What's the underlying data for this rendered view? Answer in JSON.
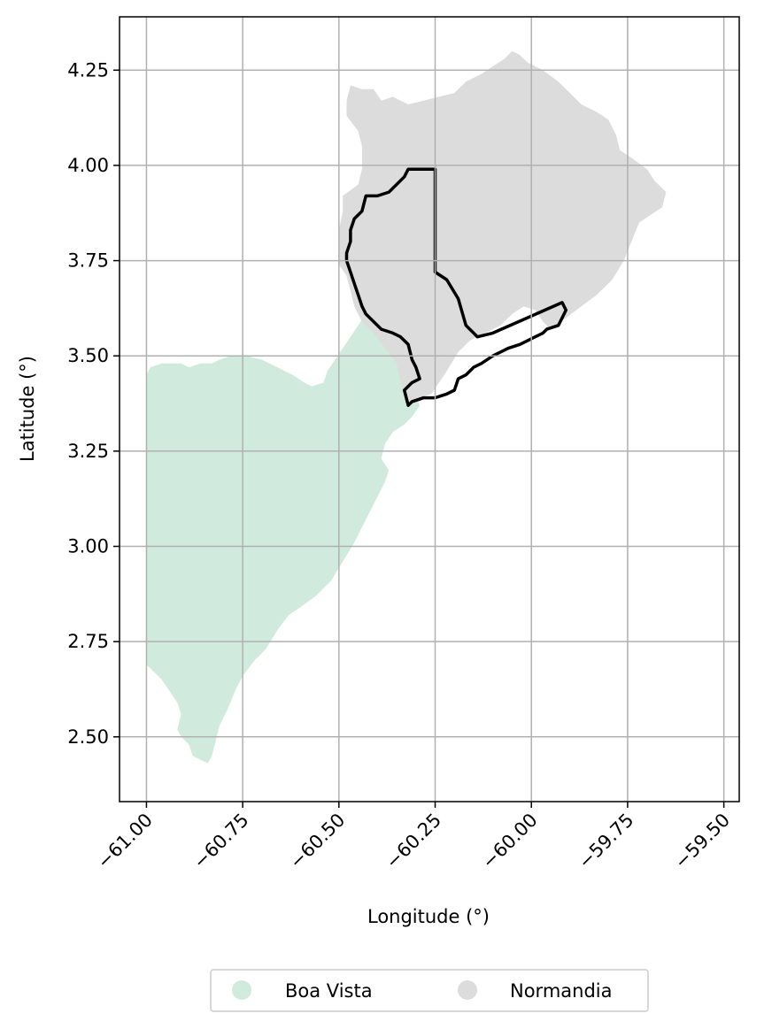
{
  "axes": {
    "xlabel": "Longitude (°)",
    "ylabel": "Latitude (°)",
    "xlim": [
      -61.07,
      -59.46
    ],
    "ylim": [
      2.33,
      4.39
    ],
    "x_ticks": [
      -61.0,
      -60.75,
      -60.5,
      -60.25,
      -60.0,
      -59.75,
      -59.5
    ],
    "x_tick_labels": [
      "−61.00",
      "−60.75",
      "−60.50",
      "−60.25",
      "−60.00",
      "−59.75",
      "−59.50"
    ],
    "y_ticks": [
      2.5,
      2.75,
      3.0,
      3.25,
      3.5,
      3.75,
      4.0,
      4.25
    ],
    "y_tick_labels": [
      "2.50",
      "2.75",
      "3.00",
      "3.25",
      "3.50",
      "3.75",
      "4.00",
      "4.25"
    ],
    "grid": true
  },
  "legend": {
    "placement": "bottom-center",
    "items": [
      {
        "label": "Boa Vista",
        "color": "#d0ebdd"
      },
      {
        "label": "Normandia",
        "color": "#dcdcdc"
      }
    ]
  },
  "colors": {
    "boa_vista": "#d0ebdd",
    "normandia": "#dcdcdc",
    "outline": "#000000",
    "grid": "#b0b0b0"
  },
  "regions": [
    {
      "name": "Boa Vista",
      "color": "#d0ebdd",
      "coords": [
        [
          -61.0,
          3.45
        ],
        [
          -60.99,
          3.47
        ],
        [
          -60.96,
          3.48
        ],
        [
          -60.94,
          3.48
        ],
        [
          -60.91,
          3.48
        ],
        [
          -60.89,
          3.47
        ],
        [
          -60.86,
          3.48
        ],
        [
          -60.83,
          3.48
        ],
        [
          -60.81,
          3.49
        ],
        [
          -60.78,
          3.5
        ],
        [
          -60.74,
          3.5
        ],
        [
          -60.7,
          3.49
        ],
        [
          -60.66,
          3.47
        ],
        [
          -60.62,
          3.45
        ],
        [
          -60.59,
          3.43
        ],
        [
          -60.57,
          3.42
        ],
        [
          -60.54,
          3.43
        ],
        [
          -60.53,
          3.46
        ],
        [
          -60.51,
          3.49
        ],
        [
          -60.49,
          3.52
        ],
        [
          -60.47,
          3.55
        ],
        [
          -60.45,
          3.58
        ],
        [
          -60.43,
          3.61
        ],
        [
          -60.41,
          3.59
        ],
        [
          -60.39,
          3.56
        ],
        [
          -60.37,
          3.53
        ],
        [
          -60.35,
          3.5
        ],
        [
          -60.33,
          3.46
        ],
        [
          -60.31,
          3.42
        ],
        [
          -60.29,
          3.37
        ],
        [
          -60.31,
          3.34
        ],
        [
          -60.33,
          3.32
        ],
        [
          -60.36,
          3.3
        ],
        [
          -60.38,
          3.27
        ],
        [
          -60.39,
          3.23
        ],
        [
          -60.37,
          3.2
        ],
        [
          -60.38,
          3.17
        ],
        [
          -60.4,
          3.13
        ],
        [
          -60.42,
          3.09
        ],
        [
          -60.44,
          3.05
        ],
        [
          -60.46,
          3.01
        ],
        [
          -60.49,
          2.96
        ],
        [
          -60.52,
          2.91
        ],
        [
          -60.56,
          2.87
        ],
        [
          -60.6,
          2.84
        ],
        [
          -60.63,
          2.82
        ],
        [
          -60.66,
          2.78
        ],
        [
          -60.69,
          2.73
        ],
        [
          -60.72,
          2.7
        ],
        [
          -60.75,
          2.66
        ],
        [
          -60.77,
          2.62
        ],
        [
          -60.79,
          2.57
        ],
        [
          -60.81,
          2.53
        ],
        [
          -60.82,
          2.49
        ],
        [
          -60.83,
          2.45
        ],
        [
          -60.84,
          2.43
        ],
        [
          -60.86,
          2.44
        ],
        [
          -60.88,
          2.45
        ],
        [
          -60.89,
          2.48
        ],
        [
          -60.91,
          2.5
        ],
        [
          -60.92,
          2.52
        ],
        [
          -60.91,
          2.56
        ],
        [
          -60.92,
          2.59
        ],
        [
          -60.94,
          2.62
        ],
        [
          -60.96,
          2.65
        ],
        [
          -60.98,
          2.67
        ],
        [
          -61.0,
          2.69
        ],
        [
          -61.0,
          2.8
        ],
        [
          -61.0,
          2.95
        ],
        [
          -61.0,
          3.1
        ],
        [
          -61.0,
          3.25
        ],
        [
          -61.0,
          3.45
        ]
      ]
    },
    {
      "name": "Normandia",
      "color": "#dcdcdc",
      "coords": [
        [
          -60.47,
          4.21
        ],
        [
          -60.44,
          4.2
        ],
        [
          -60.41,
          4.2
        ],
        [
          -60.39,
          4.17
        ],
        [
          -60.36,
          4.18
        ],
        [
          -60.32,
          4.16
        ],
        [
          -60.28,
          4.17
        ],
        [
          -60.24,
          4.18
        ],
        [
          -60.2,
          4.19
        ],
        [
          -60.17,
          4.22
        ],
        [
          -60.13,
          4.24
        ],
        [
          -60.1,
          4.26
        ],
        [
          -60.07,
          4.28
        ],
        [
          -60.05,
          4.3
        ],
        [
          -60.03,
          4.29
        ],
        [
          -60.01,
          4.27
        ],
        [
          -59.97,
          4.25
        ],
        [
          -59.93,
          4.22
        ],
        [
          -59.9,
          4.19
        ],
        [
          -59.87,
          4.16
        ],
        [
          -59.83,
          4.14
        ],
        [
          -59.8,
          4.12
        ],
        [
          -59.78,
          4.08
        ],
        [
          -59.77,
          4.04
        ],
        [
          -59.74,
          4.02
        ],
        [
          -59.7,
          3.99
        ],
        [
          -59.68,
          3.96
        ],
        [
          -59.65,
          3.93
        ],
        [
          -59.66,
          3.89
        ],
        [
          -59.69,
          3.87
        ],
        [
          -59.72,
          3.85
        ],
        [
          -59.74,
          3.8
        ],
        [
          -59.76,
          3.75
        ],
        [
          -59.79,
          3.7
        ],
        [
          -59.83,
          3.66
        ],
        [
          -59.87,
          3.63
        ],
        [
          -59.91,
          3.6
        ],
        [
          -59.95,
          3.57
        ],
        [
          -59.97,
          3.59
        ],
        [
          -59.99,
          3.62
        ],
        [
          -60.02,
          3.63
        ],
        [
          -60.05,
          3.61
        ],
        [
          -60.08,
          3.58
        ],
        [
          -60.12,
          3.56
        ],
        [
          -60.16,
          3.54
        ],
        [
          -60.19,
          3.51
        ],
        [
          -60.22,
          3.46
        ],
        [
          -60.24,
          3.43
        ],
        [
          -60.26,
          3.4
        ],
        [
          -60.29,
          3.39
        ],
        [
          -60.32,
          3.38
        ],
        [
          -60.34,
          3.43
        ],
        [
          -60.35,
          3.48
        ],
        [
          -60.38,
          3.52
        ],
        [
          -60.41,
          3.56
        ],
        [
          -60.44,
          3.59
        ],
        [
          -60.46,
          3.63
        ],
        [
          -60.47,
          3.67
        ],
        [
          -60.48,
          3.71
        ],
        [
          -60.5,
          3.74
        ],
        [
          -60.5,
          3.78
        ],
        [
          -60.5,
          3.83
        ],
        [
          -60.49,
          3.88
        ],
        [
          -60.49,
          3.92
        ],
        [
          -60.45,
          3.95
        ],
        [
          -60.44,
          3.99
        ],
        [
          -60.44,
          4.05
        ],
        [
          -60.45,
          4.09
        ],
        [
          -60.48,
          4.13
        ],
        [
          -60.48,
          4.17
        ],
        [
          -60.47,
          4.21
        ]
      ]
    }
  ],
  "outline": {
    "color": "#000000",
    "coords": [
      [
        -60.3,
        3.99
      ],
      [
        -60.25,
        3.99
      ],
      [
        -60.25,
        3.72
      ],
      [
        -60.22,
        3.7
      ],
      [
        -60.19,
        3.65
      ],
      [
        -60.17,
        3.58
      ],
      [
        -60.14,
        3.55
      ],
      [
        -60.1,
        3.56
      ],
      [
        -59.92,
        3.64
      ],
      [
        -59.91,
        3.62
      ],
      [
        -59.92,
        3.6
      ],
      [
        -59.93,
        3.58
      ],
      [
        -59.96,
        3.57
      ],
      [
        -59.97,
        3.56
      ],
      [
        -59.99,
        3.55
      ],
      [
        -60.03,
        3.53
      ],
      [
        -60.06,
        3.52
      ],
      [
        -60.1,
        3.5
      ],
      [
        -60.13,
        3.48
      ],
      [
        -60.15,
        3.47
      ],
      [
        -60.17,
        3.45
      ],
      [
        -60.19,
        3.44
      ],
      [
        -60.2,
        3.41
      ],
      [
        -60.22,
        3.4
      ],
      [
        -60.25,
        3.39
      ],
      [
        -60.28,
        3.39
      ],
      [
        -60.31,
        3.38
      ],
      [
        -60.32,
        3.37
      ],
      [
        -60.33,
        3.41
      ],
      [
        -60.31,
        3.43
      ],
      [
        -60.29,
        3.44
      ],
      [
        -60.3,
        3.47
      ],
      [
        -60.31,
        3.49
      ],
      [
        -60.32,
        3.53
      ],
      [
        -60.34,
        3.55
      ],
      [
        -60.36,
        3.56
      ],
      [
        -60.39,
        3.57
      ],
      [
        -60.41,
        3.59
      ],
      [
        -60.43,
        3.61
      ],
      [
        -60.44,
        3.63
      ],
      [
        -60.45,
        3.66
      ],
      [
        -60.46,
        3.69
      ],
      [
        -60.47,
        3.72
      ],
      [
        -60.48,
        3.75
      ],
      [
        -60.48,
        3.77
      ],
      [
        -60.47,
        3.8
      ],
      [
        -60.47,
        3.83
      ],
      [
        -60.46,
        3.86
      ],
      [
        -60.44,
        3.88
      ],
      [
        -60.43,
        3.92
      ],
      [
        -60.4,
        3.92
      ],
      [
        -60.37,
        3.93
      ],
      [
        -60.35,
        3.95
      ],
      [
        -60.33,
        3.97
      ],
      [
        -60.32,
        3.99
      ],
      [
        -60.3,
        3.99
      ]
    ]
  }
}
